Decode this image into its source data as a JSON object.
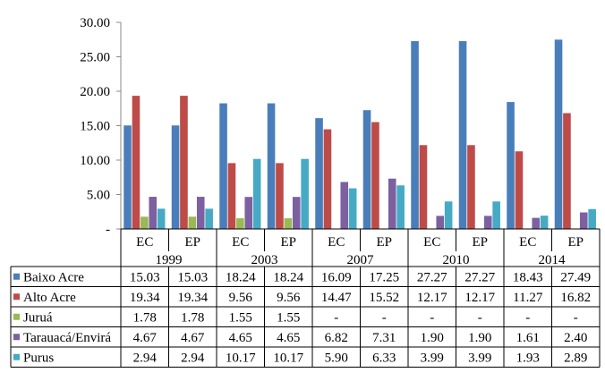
{
  "chart_data": {
    "type": "bar",
    "title": "",
    "xlabel": "",
    "ylabel": "",
    "ylim": [
      0,
      30
    ],
    "y_ticks": [
      "-",
      "5.00",
      "10.00",
      "15.00",
      "20.00",
      "25.00",
      "30.00"
    ],
    "grid": false,
    "legend": "table-left",
    "years": [
      "1999",
      "2003",
      "2007",
      "2010",
      "2014"
    ],
    "categories": [
      "EC",
      "EP",
      "EC",
      "EP",
      "EC",
      "EP",
      "EC",
      "EP",
      "EC",
      "EP"
    ],
    "series": [
      {
        "name": "Baixo Acre",
        "color": "#4a7ebb",
        "values": [
          15.03,
          15.03,
          18.24,
          18.24,
          16.09,
          17.25,
          27.27,
          27.27,
          18.43,
          27.49
        ],
        "labels": [
          "15.03",
          "15.03",
          "18.24",
          "18.24",
          "16.09",
          "17.25",
          "27.27",
          "27.27",
          "18.43",
          "27.49"
        ]
      },
      {
        "name": "Alto Acre",
        "color": "#be4b48",
        "values": [
          19.34,
          19.34,
          9.56,
          9.56,
          14.47,
          15.52,
          12.17,
          12.17,
          11.27,
          16.82
        ],
        "labels": [
          "19.34",
          "19.34",
          "9.56",
          "9.56",
          "14.47",
          "15.52",
          "12.17",
          "12.17",
          "11.27",
          "16.82"
        ]
      },
      {
        "name": "Juruá",
        "color": "#98b954",
        "values": [
          1.78,
          1.78,
          1.55,
          1.55,
          null,
          null,
          null,
          null,
          null,
          null
        ],
        "labels": [
          "1.78",
          "1.78",
          "1.55",
          "1.55",
          "-",
          "-",
          "-",
          "-",
          "-",
          "-"
        ]
      },
      {
        "name": "Tarauacá/Envirá",
        "color": "#7d60a0",
        "values": [
          4.67,
          4.67,
          4.65,
          4.65,
          6.82,
          7.31,
          1.9,
          1.9,
          1.61,
          2.4
        ],
        "labels": [
          "4.67",
          "4.67",
          "4.65",
          "4.65",
          "6.82",
          "7.31",
          "1.90",
          "1.90",
          "1.61",
          "2.40"
        ]
      },
      {
        "name": "Purus",
        "color": "#46aac5",
        "values": [
          2.94,
          2.94,
          10.17,
          10.17,
          5.9,
          6.33,
          3.99,
          3.99,
          1.93,
          2.89
        ],
        "labels": [
          "2.94",
          "2.94",
          "10.17",
          "10.17",
          "5.90",
          "6.33",
          "3.99",
          "3.99",
          "1.93",
          "2.89"
        ]
      }
    ]
  }
}
